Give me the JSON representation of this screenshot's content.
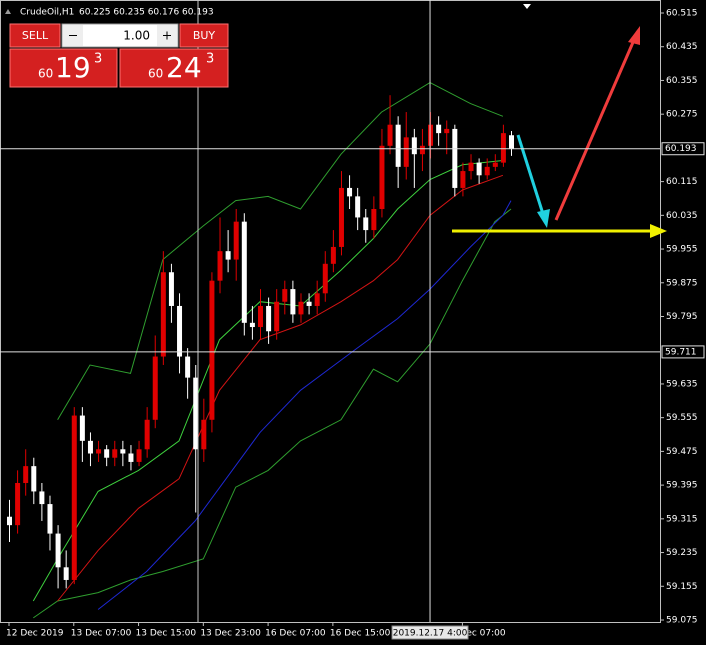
{
  "header": {
    "symbol": "CrudeOil,H1",
    "ohlc": "60.225 60.235 60.176 60.193"
  },
  "trade_panel": {
    "sell": "SELL",
    "buy": "BUY",
    "lot": "1.00",
    "bid": {
      "prefix": "60",
      "big": "19",
      "sup": "3"
    },
    "ask": {
      "prefix": "60",
      "big": "24",
      "sup": "3"
    }
  },
  "chart_data": {
    "type": "candlestick",
    "up_color": "#e00000",
    "down_color": "#ffffff",
    "xlim": [
      0,
      62
    ],
    "ylim": [
      59.075,
      60.515
    ],
    "yticks": [
      60.515,
      60.435,
      60.355,
      60.275,
      60.115,
      60.035,
      59.955,
      59.875,
      59.795,
      59.635,
      59.555,
      59.475,
      59.395,
      59.315,
      59.235,
      59.155,
      59.075
    ],
    "xticks": [
      {
        "value": 0,
        "label": "12 Dec 2019"
      },
      {
        "value": 8,
        "label": "13 Dec 07:00"
      },
      {
        "value": 16,
        "label": "13 Dec 15:00"
      },
      {
        "value": 24,
        "label": "13 Dec 23:00"
      },
      {
        "value": 32,
        "label": "16 Dec 07:00"
      },
      {
        "value": 40,
        "label": "16 Dec 15:00"
      },
      {
        "value": 56,
        "label": "Dec 07:00"
      }
    ],
    "hlines": [
      60.193,
      59.711
    ],
    "vline": {
      "value": 52,
      "label": "2019.12.17 4:00"
    },
    "open": [
      59.32,
      59.3,
      59.4,
      59.44,
      59.38,
      59.35,
      59.28,
      59.2,
      59.17,
      59.56,
      59.5,
      59.47,
      59.48,
      59.46,
      59.48,
      59.47,
      59.45,
      59.48,
      59.55,
      59.7,
      59.9,
      59.82,
      59.7,
      59.65,
      59.48,
      59.55,
      59.88,
      59.95,
      59.93,
      60.02,
      59.78,
      59.77,
      59.82,
      59.76,
      59.83,
      59.86,
      59.8,
      59.83,
      59.82,
      59.85,
      59.92,
      59.96,
      60.1,
      60.08,
      60.03,
      60.0,
      60.05,
      60.2,
      60.25,
      60.15,
      60.22,
      60.18,
      60.2,
      60.25,
      60.23,
      60.24,
      60.1,
      60.14,
      60.16,
      60.13,
      60.15,
      60.16,
      60.225
    ],
    "high": [
      59.36,
      59.43,
      59.48,
      59.46,
      59.4,
      59.37,
      59.3,
      59.24,
      59.58,
      59.58,
      59.52,
      59.5,
      59.49,
      59.5,
      59.5,
      59.49,
      59.5,
      59.58,
      59.75,
      59.95,
      59.92,
      59.85,
      59.72,
      59.68,
      59.6,
      59.9,
      60.03,
      60.0,
      60.05,
      60.04,
      59.82,
      59.86,
      59.84,
      59.86,
      59.88,
      59.88,
      59.85,
      59.85,
      59.88,
      59.95,
      60.0,
      60.14,
      60.13,
      60.1,
      60.05,
      60.08,
      60.24,
      60.32,
      60.27,
      60.28,
      60.24,
      60.24,
      60.28,
      60.27,
      60.26,
      60.25,
      60.16,
      60.18,
      60.17,
      60.17,
      60.18,
      60.25,
      60.235
    ],
    "low": [
      59.26,
      59.28,
      59.37,
      59.35,
      59.31,
      59.24,
      59.15,
      59.15,
      59.16,
      59.45,
      59.44,
      59.45,
      59.44,
      59.44,
      59.44,
      59.43,
      59.44,
      59.46,
      59.53,
      59.68,
      59.78,
      59.66,
      59.6,
      59.33,
      59.45,
      59.52,
      59.85,
      59.9,
      59.88,
      59.75,
      59.74,
      59.74,
      59.73,
      59.74,
      59.8,
      59.78,
      59.78,
      59.8,
      59.8,
      59.83,
      59.9,
      59.94,
      60.05,
      60.0,
      59.97,
      59.98,
      60.03,
      60.18,
      60.1,
      60.12,
      60.1,
      60.14,
      60.17,
      60.2,
      60.18,
      60.08,
      60.08,
      60.12,
      60.11,
      60.12,
      60.14,
      60.15,
      60.176
    ],
    "close": [
      59.3,
      59.4,
      59.44,
      59.38,
      59.35,
      59.28,
      59.2,
      59.17,
      59.56,
      59.5,
      59.47,
      59.48,
      59.46,
      59.48,
      59.47,
      59.45,
      59.48,
      59.55,
      59.7,
      59.9,
      59.82,
      59.7,
      59.65,
      59.48,
      59.55,
      59.88,
      59.95,
      59.93,
      60.02,
      59.78,
      59.77,
      59.82,
      59.76,
      59.83,
      59.86,
      59.8,
      59.83,
      59.82,
      59.85,
      59.92,
      59.96,
      60.1,
      60.08,
      60.03,
      60.0,
      60.05,
      60.2,
      60.25,
      60.15,
      60.22,
      60.18,
      60.2,
      60.25,
      60.23,
      60.24,
      60.1,
      60.14,
      60.16,
      60.13,
      60.15,
      60.16,
      60.23,
      60.193
    ],
    "indicators": [
      {
        "color": "#2f9e2f",
        "x": [
          6,
          10,
          15,
          19,
          24,
          28,
          32,
          36,
          41,
          46,
          52,
          57,
          61
        ],
        "values": [
          59.55,
          59.68,
          59.66,
          59.93,
          60.01,
          60.07,
          60.08,
          60.05,
          60.18,
          60.28,
          60.35,
          60.3,
          60.27
        ]
      },
      {
        "color": "#2f9e2f",
        "x": [
          3,
          6,
          11,
          15,
          19,
          24,
          28,
          32,
          36,
          41,
          45,
          48,
          52,
          56,
          60,
          62
        ],
        "values": [
          59.08,
          59.12,
          59.14,
          59.17,
          59.19,
          59.22,
          59.39,
          59.43,
          59.5,
          59.55,
          59.67,
          59.64,
          59.73,
          59.88,
          60.02,
          60.05
        ]
      },
      {
        "color": "#1e28d2",
        "x": [
          11,
          17,
          23,
          31,
          36,
          43,
          48,
          52,
          57,
          61,
          62
        ],
        "values": [
          59.1,
          59.19,
          59.31,
          59.52,
          59.62,
          59.72,
          59.79,
          59.86,
          59.96,
          60.035,
          60.07
        ]
      },
      {
        "color": "#d21414",
        "x": [
          6,
          11,
          16,
          21,
          26,
          31,
          36,
          41,
          45,
          48,
          52,
          56,
          61
        ],
        "values": [
          59.12,
          59.24,
          59.34,
          59.41,
          59.62,
          59.74,
          59.775,
          59.83,
          59.88,
          59.93,
          60.035,
          60.095,
          60.13
        ]
      },
      {
        "color": "#3ed03e",
        "x": [
          3,
          6,
          11,
          16,
          21,
          26,
          31,
          36,
          41,
          45,
          48,
          52,
          56,
          61
        ],
        "values": [
          59.12,
          59.22,
          59.38,
          59.43,
          59.5,
          59.74,
          59.83,
          59.82,
          59.905,
          59.98,
          60.05,
          60.12,
          60.155,
          60.165
        ]
      }
    ]
  }
}
